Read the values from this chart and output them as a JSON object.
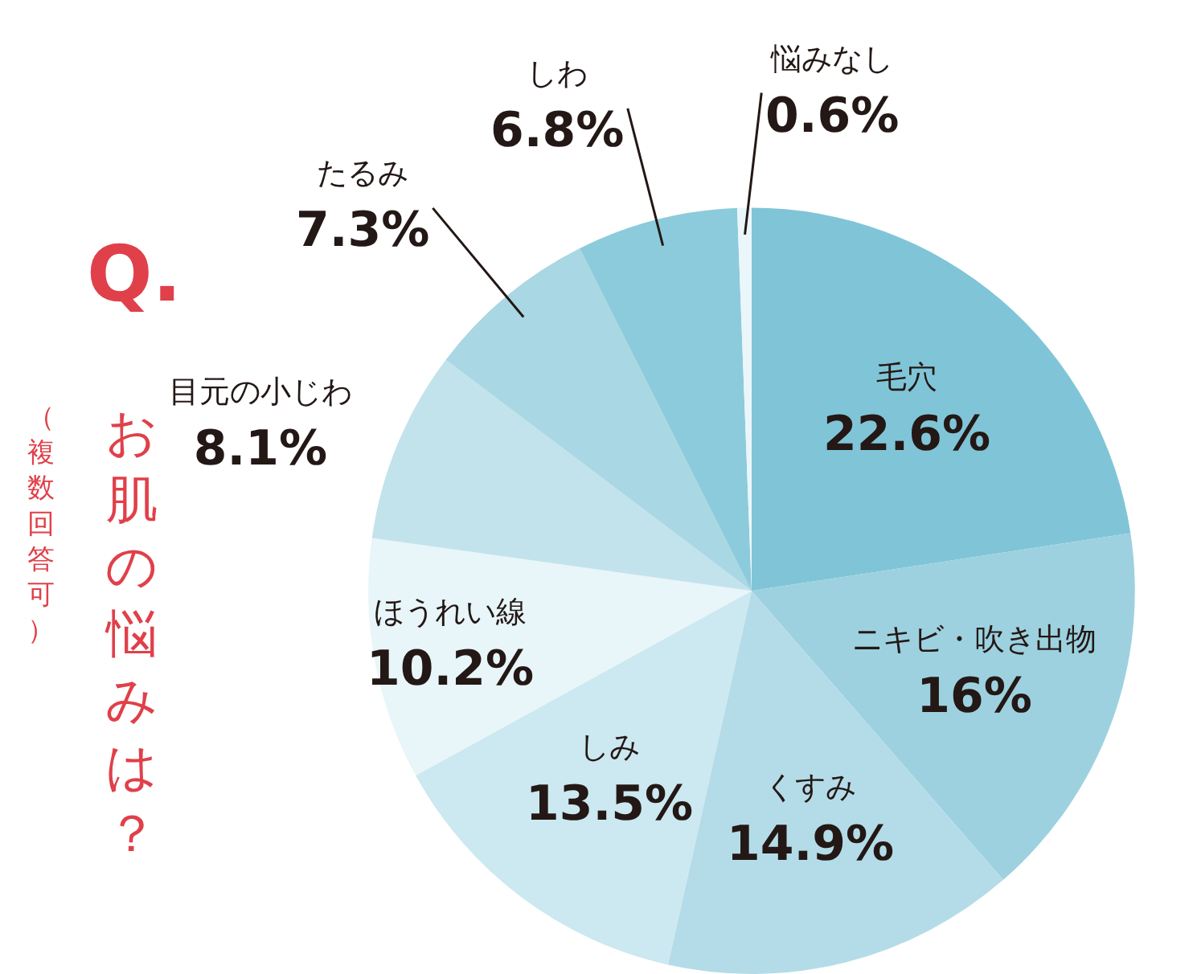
{
  "chart_data": {
    "type": "pie",
    "title": "お肌の悩みは？",
    "subtitle": "（複数回答可）",
    "annotations": [
      "Q."
    ],
    "categories": [
      "毛穴",
      "ニキビ・吹き出物",
      "くすみ",
      "しみ",
      "ほうれい線",
      "目元の小じわ",
      "たるみ",
      "しわ",
      "悩みなし"
    ],
    "values": [
      22.6,
      16,
      14.9,
      13.5,
      10.2,
      8.1,
      7.3,
      6.8,
      0.6
    ],
    "value_labels": [
      "22.6%",
      "16%",
      "14.9%",
      "13.5%",
      "10.2%",
      "8.1%",
      "7.3%",
      "6.8%",
      "0.6%"
    ],
    "colors": [
      "#80c5d7",
      "#9dd1df",
      "#b4dce8",
      "#cce8f0",
      "#e8f5f9",
      "#c3e3ec",
      "#a9d7e3",
      "#8ccbdb",
      "#eaf6fa"
    ],
    "legend": false
  }
}
